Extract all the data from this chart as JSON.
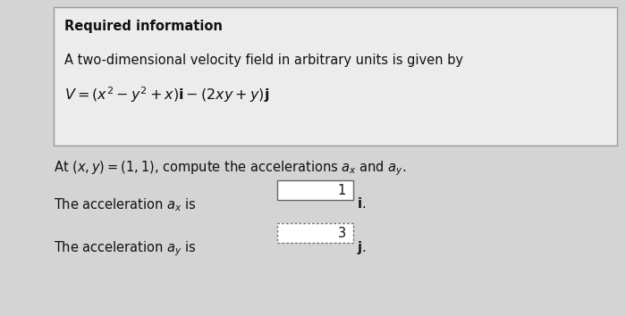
{
  "fig_width": 7.0,
  "fig_height": 3.54,
  "dpi": 100,
  "bg_color": "#d4d4d4",
  "box_bg_color": "#ececec",
  "box_border_color": "#999999",
  "title_text": "Required information",
  "body_line1": "A two-dimensional velocity field in arbitrary units is given by",
  "body_line2_plain": "V = (x",
  "body_fontsize": 10.5,
  "title_fontsize": 10.5,
  "question_fontsize": 10.5,
  "text_color": "#111111",
  "accel_x_value": "1",
  "accel_y_value": "3"
}
